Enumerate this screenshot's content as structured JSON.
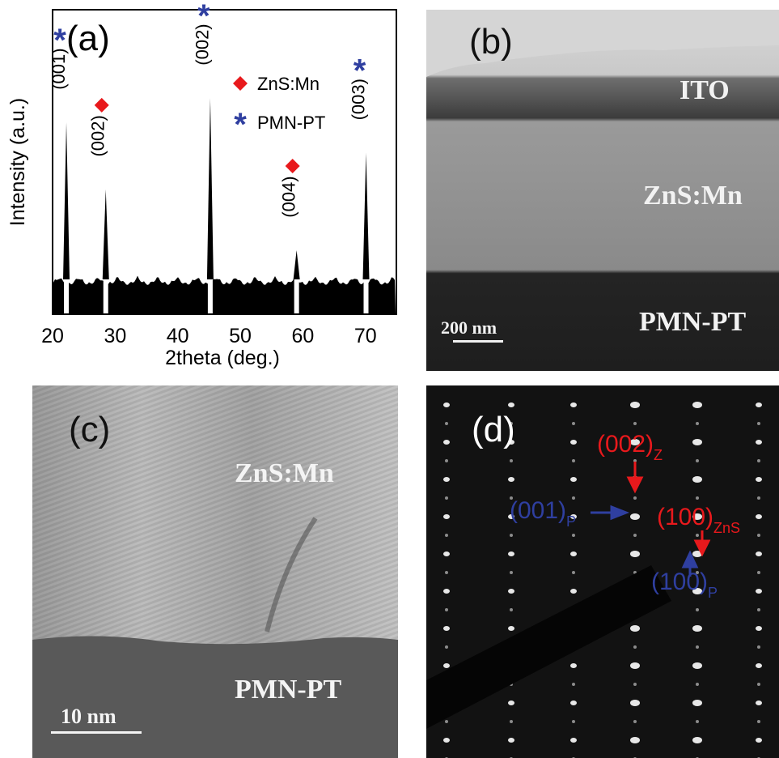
{
  "chart_data": {
    "type": "line",
    "panel_label": "(a)",
    "x_label": "2theta (deg.)",
    "y_label": "Intensity (a.u.)",
    "xlim": [
      20,
      75
    ],
    "xticks": [
      20,
      30,
      40,
      50,
      60,
      70
    ],
    "ylim": [
      0,
      100
    ],
    "series": [
      {
        "name": "ZnS:Mn",
        "color": "#e8191c",
        "marker": "diamond",
        "x": [
          28.5,
          59
        ],
        "values": [
          41,
          21
        ],
        "labels": [
          "(002)",
          "(004)"
        ]
      },
      {
        "name": "PMN-PT",
        "color": "#2f3fa0",
        "marker": "asterisk",
        "x": [
          22.2,
          45.2,
          70.1
        ],
        "values": [
          63,
          71,
          53
        ],
        "labels": [
          "(001)",
          "(002)",
          "(003)"
        ]
      }
    ]
  },
  "panels": [
    {
      "label": "(b)",
      "layers": [
        "ITO",
        "ZnS:Mn",
        "PMN-PT"
      ],
      "scale_bar": "200 nm"
    },
    {
      "label": "(c)",
      "layers": [
        "ZnS:Mn",
        "PMN-PT"
      ],
      "scale_bar": "10 nm"
    },
    {
      "label": "(d)",
      "spots": [
        {
          "index": "(002)",
          "subscript": "Z"
        },
        {
          "index": "(001)",
          "subscript": "P"
        },
        {
          "index": "(100)",
          "subscript": "ZnS"
        },
        {
          "index": "(100)",
          "subscript": "P"
        }
      ]
    }
  ]
}
